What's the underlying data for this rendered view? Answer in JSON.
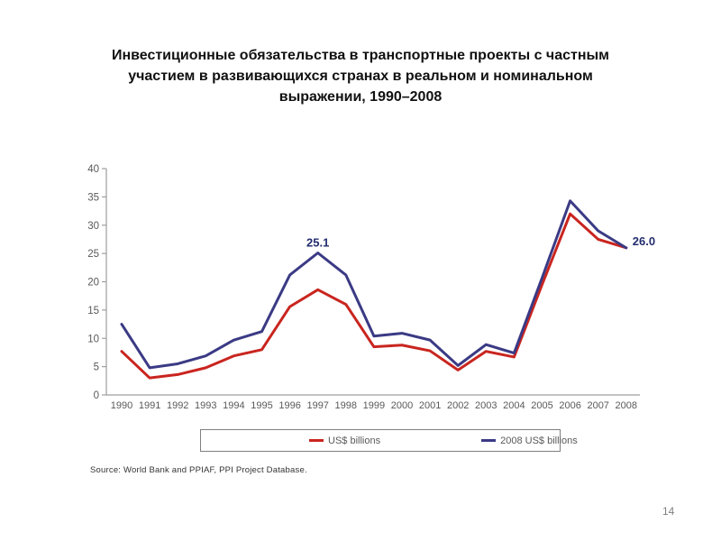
{
  "title": "Инвестиционные обязательства в транспортные проекты  с частным участием в развивающихся странах  в реальном и номинальном выражении, 1990–2008",
  "source": "Source: World Bank and PPIAF, PPI Project Database.",
  "page": {
    "number": "14"
  },
  "legend": {
    "item1": "US$ billions",
    "item2": "2008 US$ billions"
  },
  "chart_data": {
    "type": "line",
    "title": "",
    "xlabel": "",
    "ylabel": "",
    "categories": [
      "1990",
      "1991",
      "1992",
      "1993",
      "1994",
      "1995",
      "1996",
      "1997",
      "1998",
      "1999",
      "2000",
      "2001",
      "2002",
      "2003",
      "2004",
      "2005",
      "2006",
      "2007",
      "2008"
    ],
    "series": [
      {
        "name": "US$ billions",
        "color": "#c9251f",
        "values": [
          7.7,
          3.0,
          3.6,
          4.8,
          6.9,
          8.0,
          15.6,
          18.6,
          16.0,
          8.5,
          8.8,
          7.8,
          4.4,
          7.7,
          6.7,
          19.5,
          32.0,
          27.5,
          26.0
        ]
      },
      {
        "name": "2008 US$ billions",
        "color": "#3a3a85",
        "values": [
          12.5,
          4.8,
          5.5,
          6.9,
          9.7,
          11.2,
          21.2,
          25.1,
          21.2,
          10.4,
          10.9,
          9.7,
          5.2,
          8.9,
          7.4,
          20.7,
          34.3,
          29.0,
          26.0
        ]
      }
    ],
    "ylim": [
      0,
      40
    ],
    "ytick_step": 5,
    "grid": false,
    "legend_position": "bottom",
    "annotations": [
      {
        "text": "25.1",
        "series": 1,
        "index": 7,
        "placement": "above"
      },
      {
        "text": "26.0",
        "series": 1,
        "index": 18,
        "placement": "right"
      }
    ],
    "colors": {
      "axis": "#9e9e9e",
      "tick_labels": "#595959",
      "annotation": "#232d6e"
    }
  }
}
